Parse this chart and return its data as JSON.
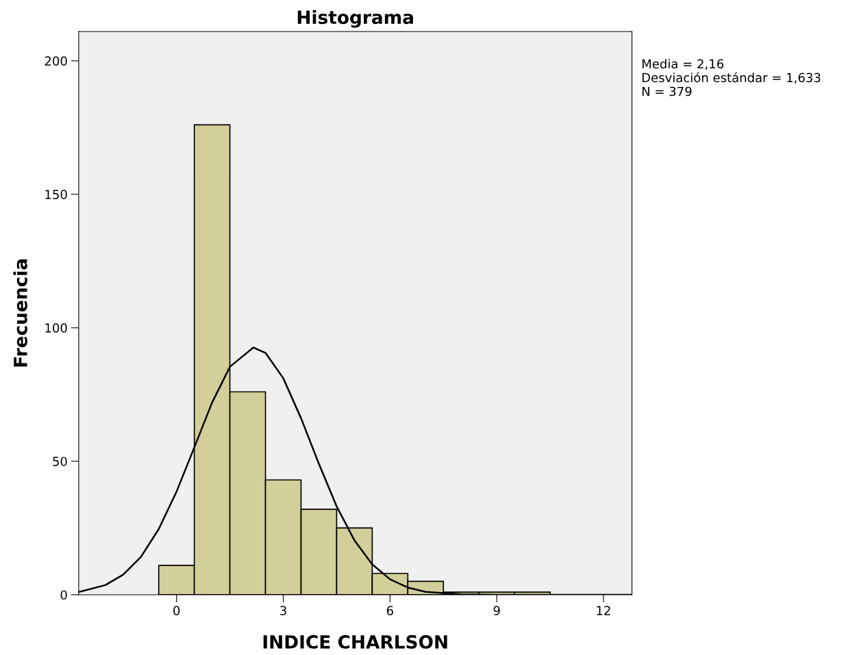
{
  "chart_data": {
    "type": "histogram",
    "title": "Histograma",
    "xlabel": "INDICE CHARLSON",
    "ylabel": "Frecuencia",
    "bins": [
      -0.5,
      0.5,
      1.5,
      2.5,
      3.5,
      4.5,
      5.5,
      6.5,
      7.5,
      8.5,
      9.5,
      10.5
    ],
    "series": [
      {
        "color": "#d3cf9a",
        "values": [
          11,
          176,
          76,
          43,
          32,
          25,
          8,
          5,
          1,
          1,
          1
        ]
      },
      {
        "type": "line",
        "color": "#000000",
        "x": [
          -2.75,
          -2,
          -1.5,
          -1,
          -0.5,
          0,
          0.5,
          1,
          1.5,
          2.16,
          2.5,
          3,
          3.5,
          4,
          4.5,
          5,
          5.5,
          6,
          6.5,
          7,
          8,
          9,
          10,
          12.8
        ],
        "values": [
          1.0,
          3.6,
          7.5,
          14.2,
          24.6,
          38.6,
          55.2,
          72.0,
          85.4,
          92.6,
          90.6,
          81.1,
          66.1,
          49.1,
          33.1,
          20.4,
          11.4,
          5.8,
          2.7,
          1.1,
          0.2,
          0,
          0,
          0
        ]
      }
    ],
    "xlim": [
      -2.75,
      12.8
    ],
    "ylim": [
      0,
      211
    ],
    "xticks": [
      0,
      3,
      6,
      9,
      12
    ],
    "yticks": [
      0,
      50,
      100,
      150,
      200
    ],
    "grid": false,
    "legend": false,
    "marker": "none",
    "line_style": "solid",
    "annotations": [
      "Media = 2,16",
      "Desviación estándar = 1,633",
      "N = 379"
    ]
  }
}
